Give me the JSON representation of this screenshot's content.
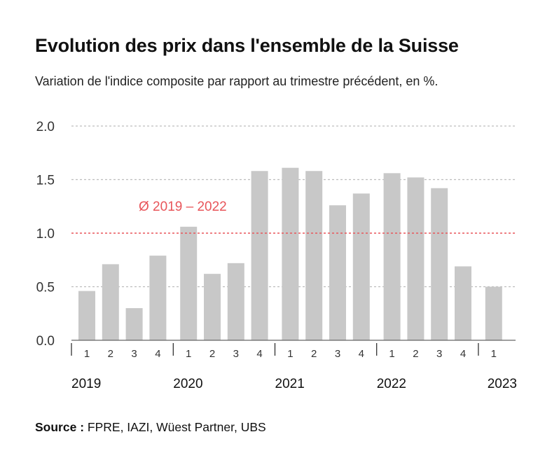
{
  "title": "Evolution des prix dans l'ensemble de la Suisse",
  "subtitle": "Variation de l'indice composite par rapport au trimestre précédent, en %.",
  "source": {
    "label": "Source :",
    "text": "FPRE, IAZI, Wüest Partner, UBS"
  },
  "colors": {
    "bar": "#c8c8c8",
    "average": "#e8555a",
    "grid": "#bdbdbd",
    "axis": "#666666",
    "text": "#333333"
  },
  "chart_data": {
    "type": "bar",
    "ylim": [
      0,
      2.0
    ],
    "yticks": [
      "0.0",
      "0.5",
      "1.0",
      "1.5",
      "2.0"
    ],
    "grid": true,
    "categories": [
      "2019 Q1",
      "2019 Q2",
      "2019 Q3",
      "2019 Q4",
      "2020 Q1",
      "2020 Q2",
      "2020 Q3",
      "2020 Q4",
      "2021 Q1",
      "2021 Q2",
      "2021 Q3",
      "2021 Q4",
      "2022 Q1",
      "2022 Q2",
      "2022 Q3",
      "2022 Q4",
      "2023 Q1"
    ],
    "quarter_labels": [
      "1",
      "2",
      "3",
      "4",
      "1",
      "2",
      "3",
      "4",
      "1",
      "2",
      "3",
      "4",
      "1",
      "2",
      "3",
      "4",
      "1"
    ],
    "years": [
      "2019",
      "2020",
      "2021",
      "2022",
      "2023"
    ],
    "values": [
      0.46,
      0.71,
      0.3,
      0.79,
      1.06,
      0.62,
      0.72,
      1.58,
      1.61,
      1.58,
      1.26,
      1.37,
      1.56,
      1.52,
      1.42,
      0.69,
      0.5
    ],
    "average": {
      "label": "Ø 2019 – 2022",
      "value": 1.0
    }
  }
}
